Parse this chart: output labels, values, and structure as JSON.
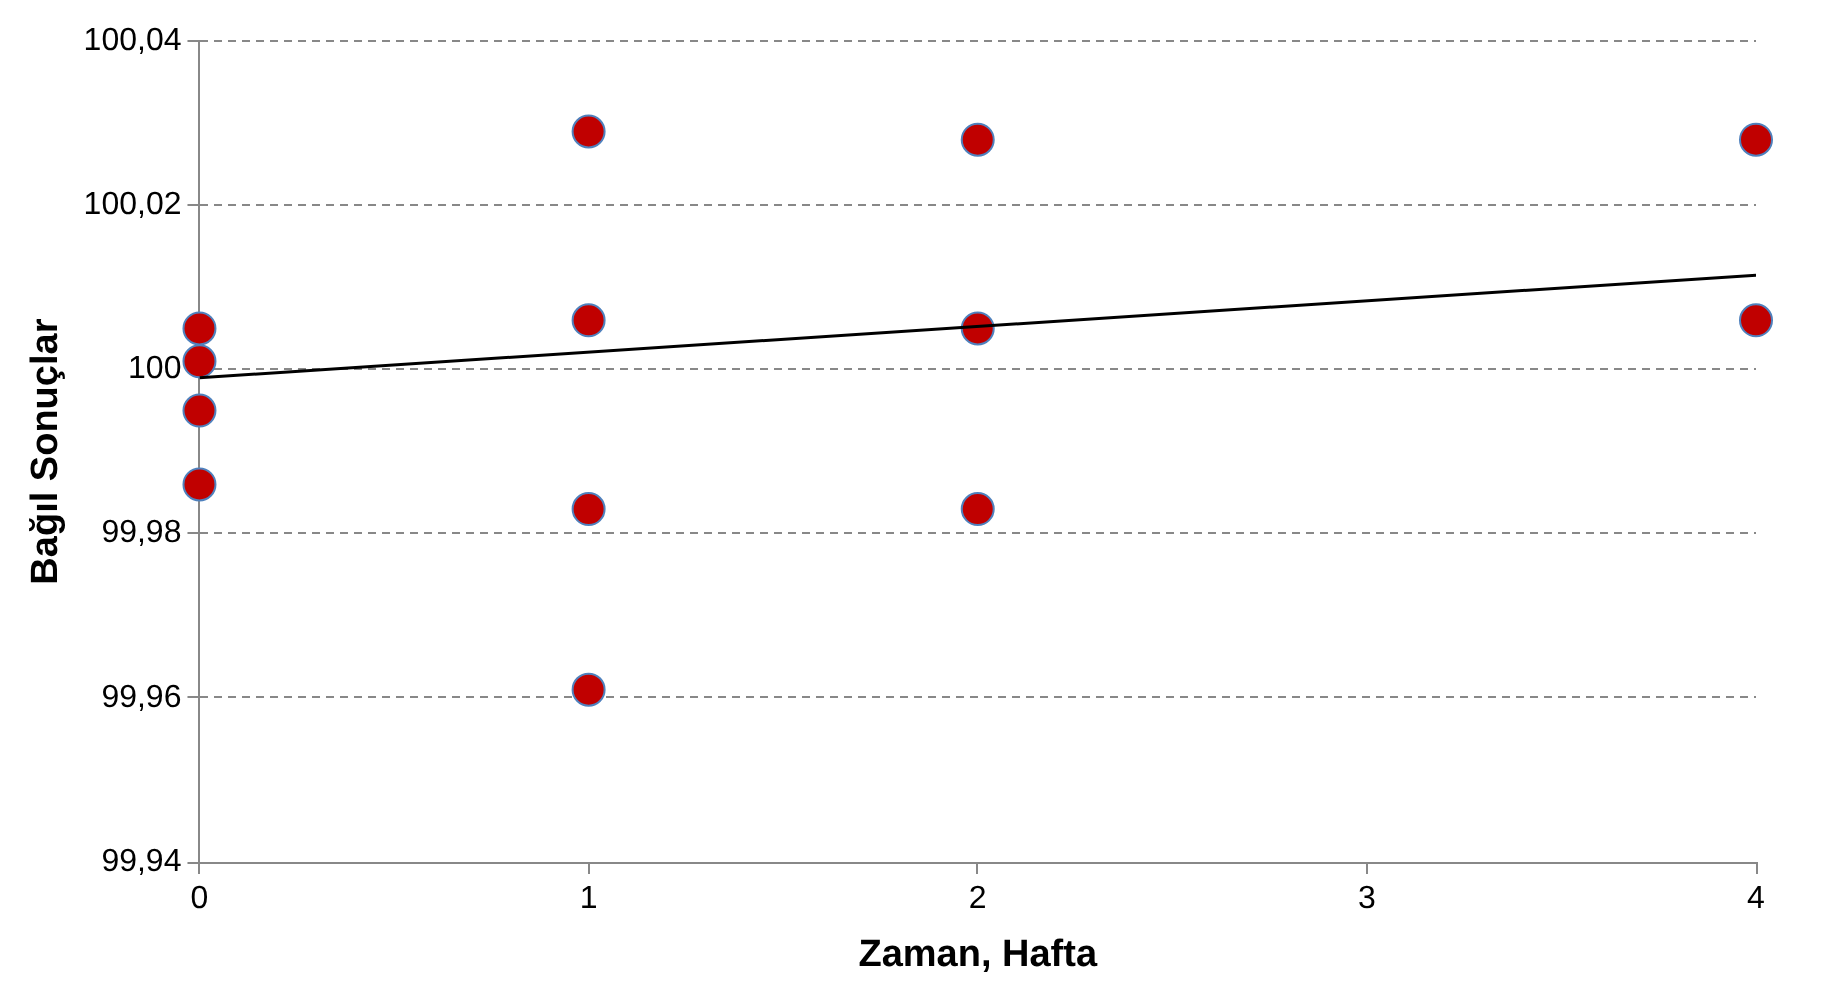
{
  "chart_data": {
    "type": "scatter",
    "xlabel": "Zaman, Hafta",
    "ylabel": "Bağıl Sonuçlar",
    "xlim": [
      0,
      4
    ],
    "xticks": [
      0,
      1,
      2,
      3,
      4
    ],
    "ylim": [
      99.94,
      100.04
    ],
    "yticks": [
      {
        "value": 99.94,
        "label": "99,94"
      },
      {
        "value": 99.96,
        "label": "99,96"
      },
      {
        "value": 99.98,
        "label": "99,98"
      },
      100,
      {
        "value": 100.02,
        "label": "100,02"
      },
      {
        "value": 100.04,
        "label": "100,04"
      }
    ],
    "grid": "y",
    "legend": false,
    "marker": "circle",
    "series": [
      {
        "type": "scatter",
        "color": "#c00000",
        "x": [
          0,
          0,
          0,
          0,
          1,
          1,
          1,
          1,
          2,
          2,
          2,
          4,
          4
        ],
        "values": [
          100.005,
          100.001,
          99.995,
          99.986,
          100.029,
          100.006,
          99.983,
          99.961,
          100.028,
          100.005,
          99.983,
          100.028,
          100.006
        ]
      },
      {
        "type": "line",
        "color": "#000000",
        "marker": "none",
        "x": [
          0,
          4
        ],
        "values": [
          99.999,
          100.0115
        ]
      }
    ]
  }
}
